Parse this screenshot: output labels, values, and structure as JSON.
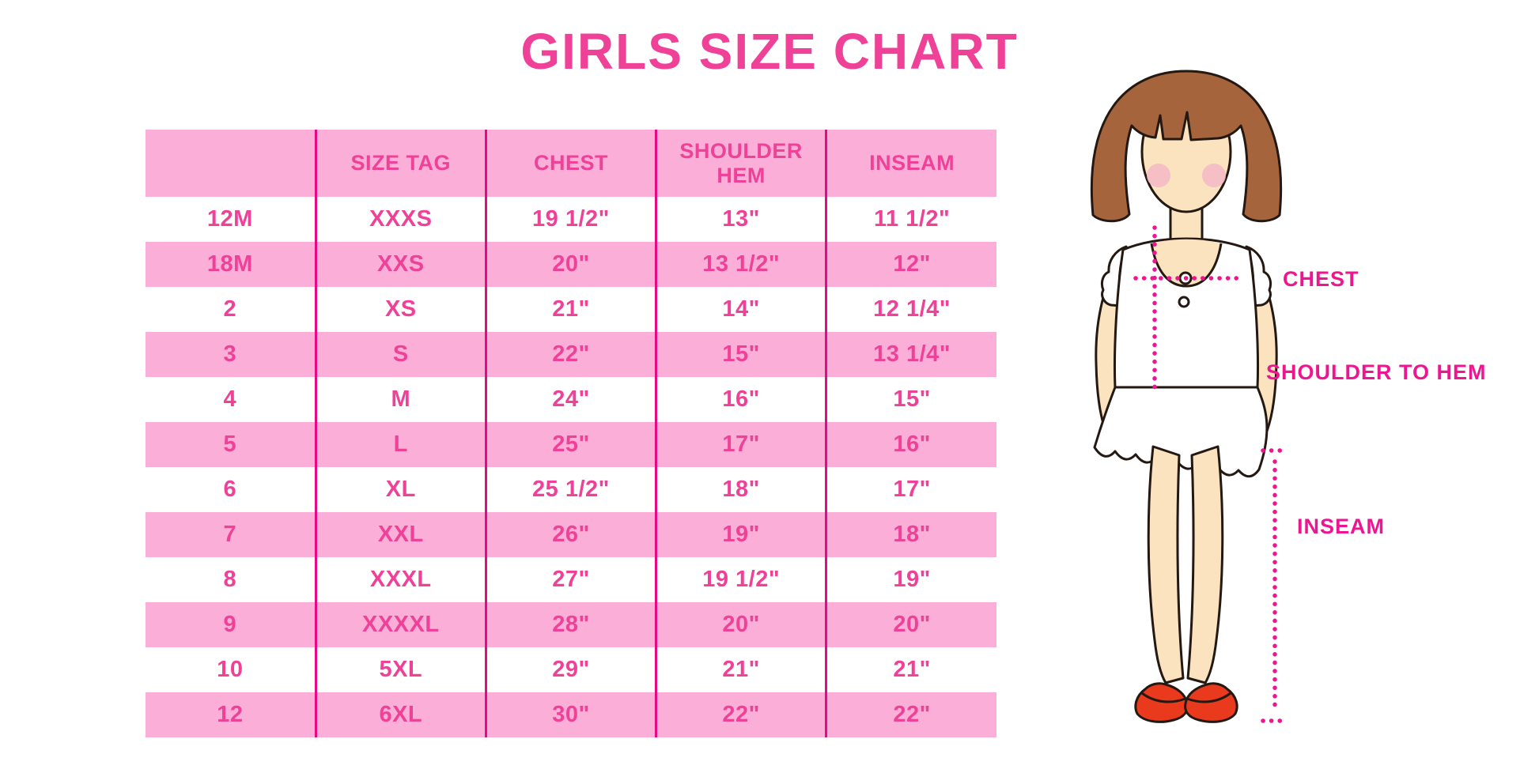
{
  "page": {
    "title": "GIRLS SIZE CHART"
  },
  "colors": {
    "title_pink": "#EF4197",
    "table_text_pink": "#EF4197",
    "row_pink": "#FBAED8",
    "divider_magenta": "#E60984",
    "label_magenta": "#ED1690",
    "hair_brown": "#A5643C",
    "skin": "#FBE3C0",
    "blush": "#F5B9C6",
    "shoe_red": "#E93A1E",
    "outline": "#241812"
  },
  "chart_data": {
    "type": "table",
    "title": "GIRLS SIZE CHART",
    "columns": [
      "",
      "SIZE TAG",
      "CHEST",
      "SHOULDER HEM",
      "INSEAM"
    ],
    "rows": [
      [
        "12M",
        "XXXS",
        "19 1/2\"",
        "13\"",
        "11 1/2\""
      ],
      [
        "18M",
        "XXS",
        "20\"",
        "13 1/2\"",
        "12\""
      ],
      [
        "2",
        "XS",
        "21\"",
        "14\"",
        "12 1/4\""
      ],
      [
        "3",
        "S",
        "22\"",
        "15\"",
        "13 1/4\""
      ],
      [
        "4",
        "M",
        "24\"",
        "16\"",
        "15\""
      ],
      [
        "5",
        "L",
        "25\"",
        "17\"",
        "16\""
      ],
      [
        "6",
        "XL",
        "25 1/2\"",
        "18\"",
        "17\""
      ],
      [
        "7",
        "XXL",
        "26\"",
        "19\"",
        "18\""
      ],
      [
        "8",
        "XXXL",
        "27\"",
        "19 1/2\"",
        "19\""
      ],
      [
        "9",
        "XXXXL",
        "28\"",
        "20\"",
        "20\""
      ],
      [
        "10",
        "5XL",
        "29\"",
        "21\"",
        "21\""
      ],
      [
        "12",
        "6XL",
        "30\"",
        "22\"",
        "22\""
      ]
    ],
    "legend_position": "none",
    "grid": "alternating pink/white row stripes with magenta column dividers"
  },
  "diagram": {
    "chest_label": "CHEST",
    "shoulder_to_hem_label": "SHOULDER TO HEM",
    "inseam_label": "INSEAM"
  }
}
